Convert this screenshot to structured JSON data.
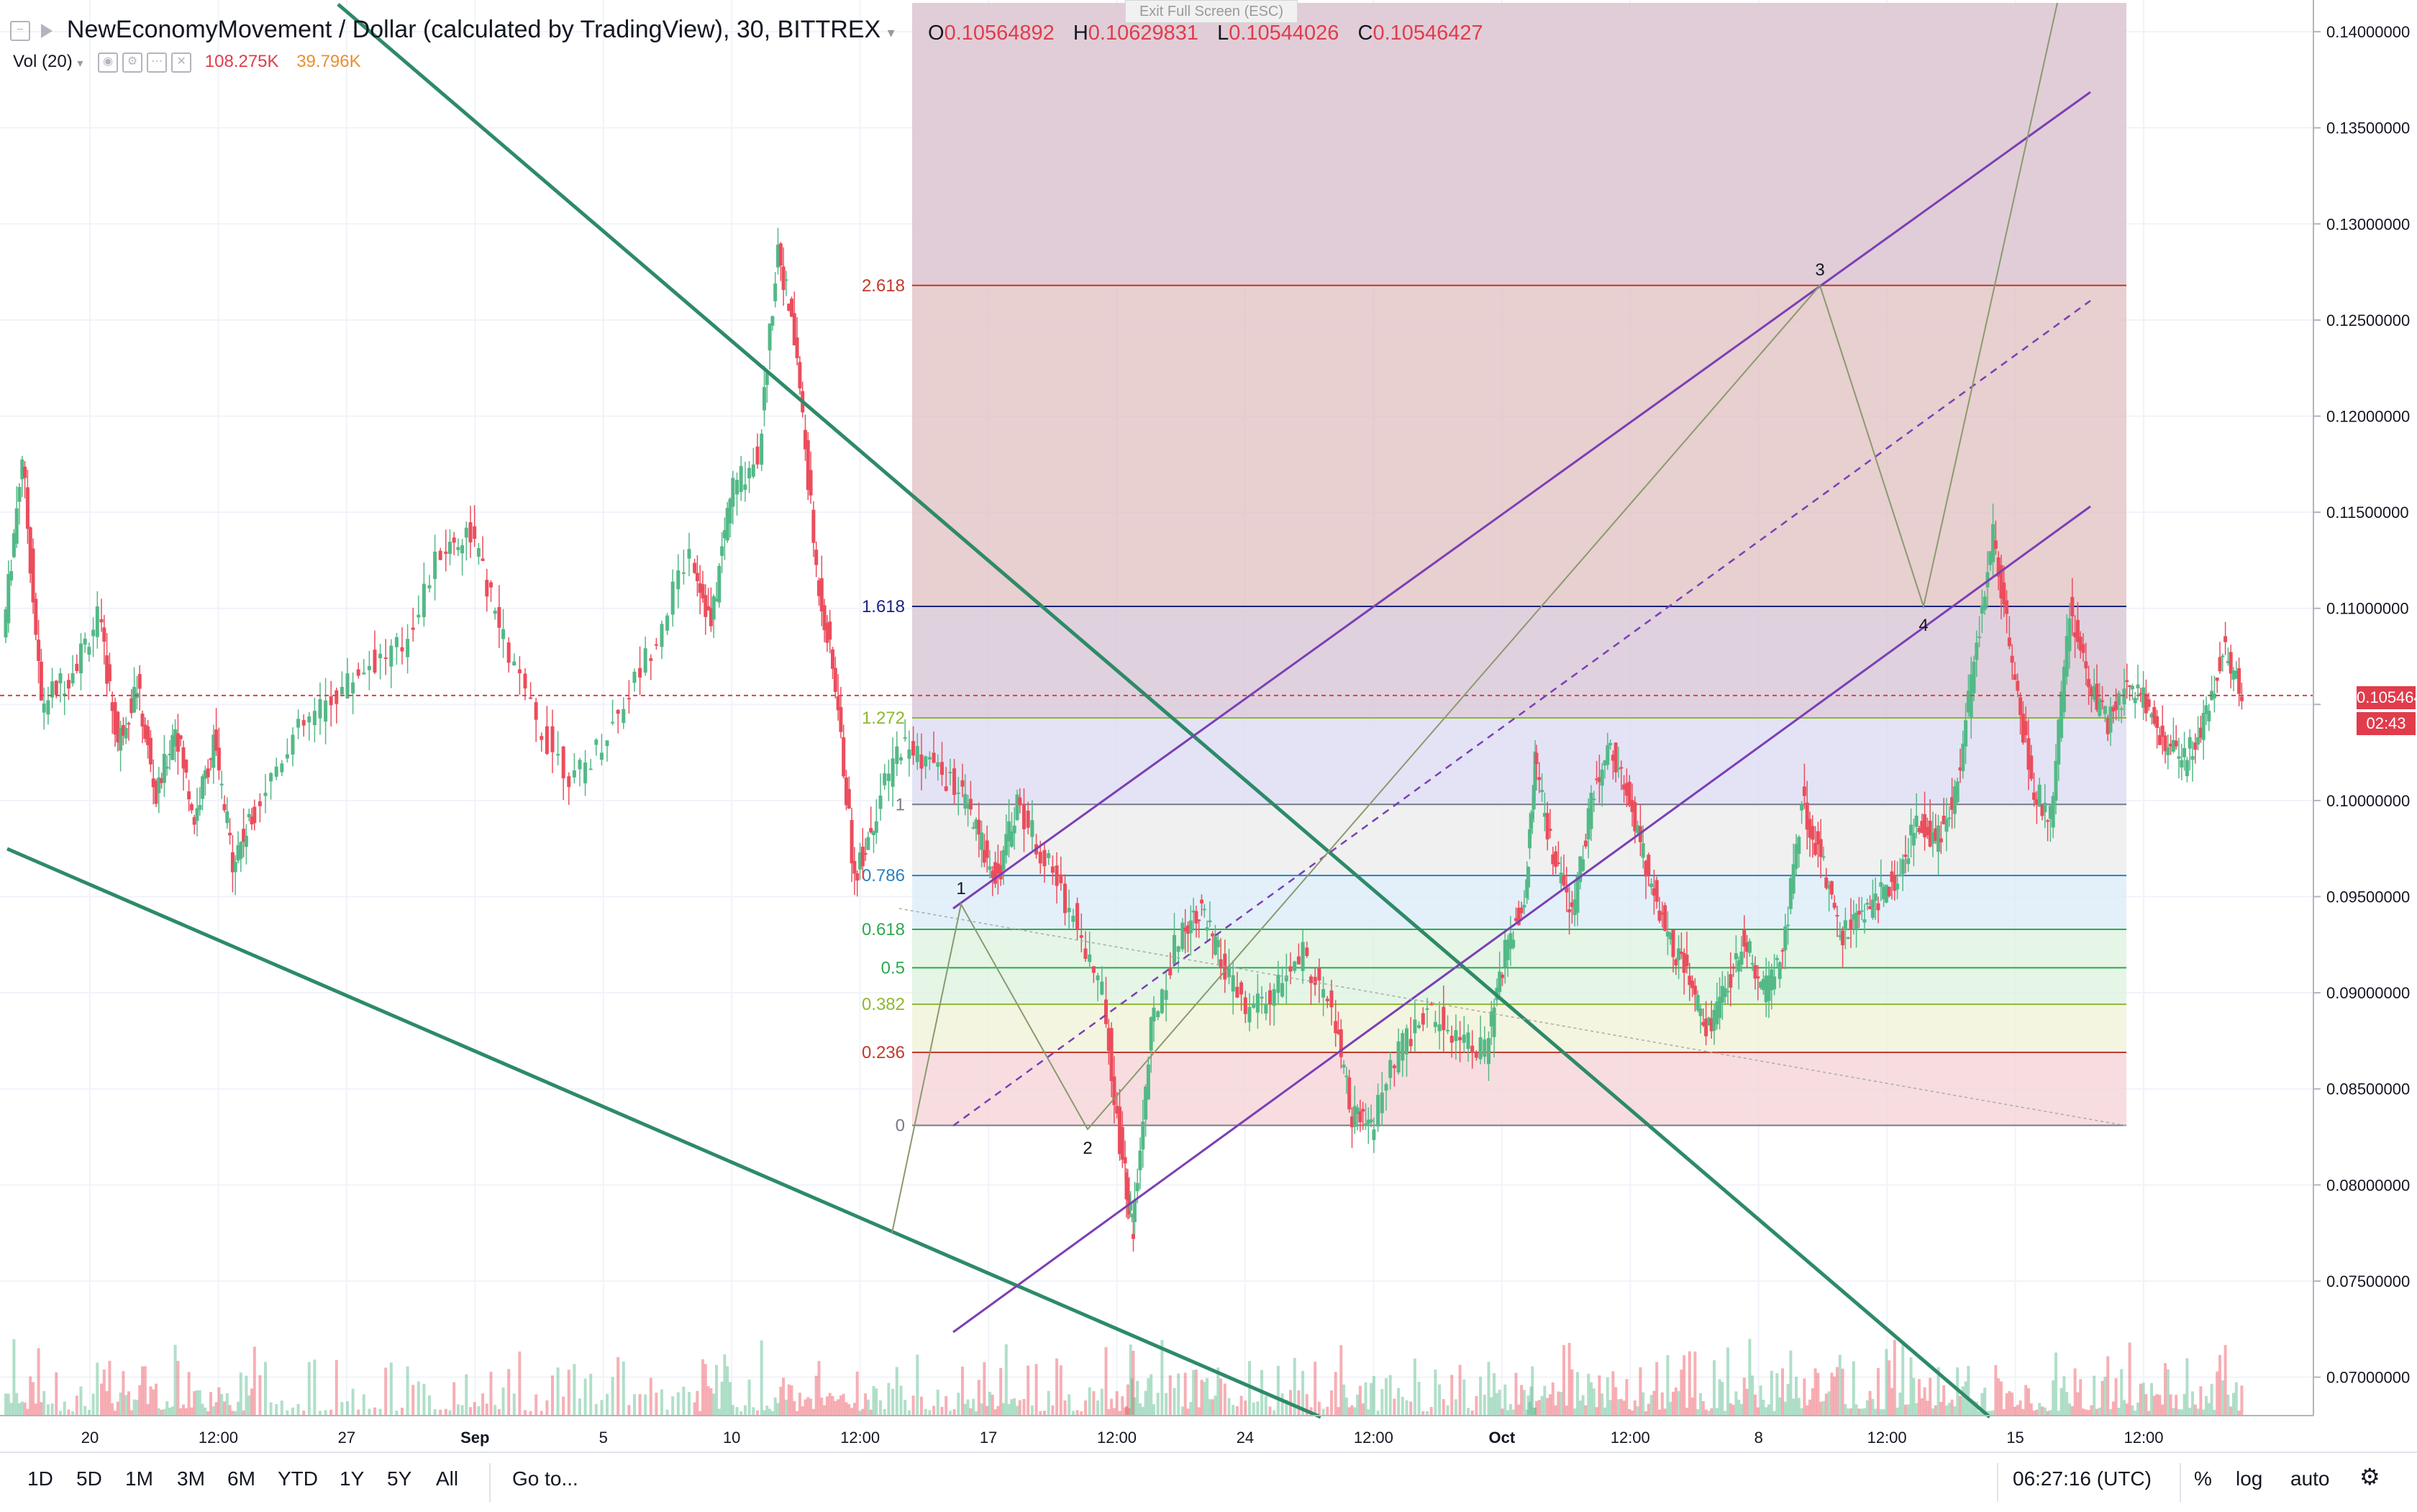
{
  "header": {
    "symbol": "NewEconomyMovement / Dollar (calculated by TradingView), 30, BITTREX",
    "ohlc": [
      {
        "key": "O",
        "value": "0.10564892"
      },
      {
        "key": "H",
        "value": "0.10629831"
      },
      {
        "key": "L",
        "value": "0.10544026"
      },
      {
        "key": "C",
        "value": "0.10546427"
      }
    ],
    "volume_label": "Vol (20)",
    "volume_values": [
      "108.275K",
      "39.796K"
    ],
    "exit_fullscreen": "Exit Full Screen (ESC)"
  },
  "colors": {
    "up": "#53b987",
    "down": "#eb4d5c",
    "trendline": "#2e8a68",
    "channel": "#7b3fb5",
    "current_price": "#e03c4c",
    "wave": "#8a9a6e"
  },
  "chart_data": {
    "type": "candlestick",
    "y_axis": {
      "ticks": [
        0.14,
        0.135,
        0.13,
        0.125,
        0.12,
        0.115,
        0.11,
        0.105,
        0.1,
        0.095,
        0.09,
        0.085,
        0.08,
        0.075,
        0.07
      ],
      "tick_labels": [
        "0.14000000",
        "0.13500000",
        "0.13000000",
        "0.12500000",
        "0.12000000",
        "0.11500000",
        "0.11000000",
        "",
        "0.10000000",
        "0.09500000",
        "0.09000000",
        "0.08500000",
        "0.08000000",
        "0.07500000",
        "0.07000000"
      ],
      "range": [
        0.068,
        0.1415
      ]
    },
    "x_axis": {
      "tick_labels": [
        "20",
        "12:00",
        "27",
        "Sep",
        "5",
        "10",
        "12:00",
        "17",
        "12:00",
        "24",
        "12:00",
        "Oct",
        "12:00",
        "8",
        "12:00",
        "15",
        "12:00"
      ]
    },
    "current_price": {
      "value": 0.10546427,
      "label": "0.10546427",
      "countdown": "02:43"
    },
    "price_path": [
      [
        0,
        0.1085
      ],
      [
        0.01,
        0.118
      ],
      [
        0.02,
        0.105
      ],
      [
        0.035,
        0.1065
      ],
      [
        0.05,
        0.1095
      ],
      [
        0.06,
        0.103
      ],
      [
        0.07,
        0.106
      ],
      [
        0.08,
        0.1
      ],
      [
        0.09,
        0.104
      ],
      [
        0.1,
        0.099
      ],
      [
        0.11,
        0.103
      ],
      [
        0.12,
        0.097
      ],
      [
        0.13,
        0.099
      ],
      [
        0.15,
        0.103
      ],
      [
        0.17,
        0.105
      ],
      [
        0.19,
        0.107
      ],
      [
        0.21,
        0.108
      ],
      [
        0.23,
        0.113
      ],
      [
        0.245,
        0.114
      ],
      [
        0.26,
        0.109
      ],
      [
        0.28,
        0.104
      ],
      [
        0.3,
        0.101
      ],
      [
        0.32,
        0.104
      ],
      [
        0.34,
        0.108
      ],
      [
        0.36,
        0.113
      ],
      [
        0.37,
        0.109
      ],
      [
        0.38,
        0.116
      ],
      [
        0.395,
        0.118
      ],
      [
        0.405,
        0.129
      ],
      [
        0.415,
        0.123
      ],
      [
        0.425,
        0.112
      ],
      [
        0.435,
        0.106
      ],
      [
        0.445,
        0.096
      ],
      [
        0.455,
        0.099
      ],
      [
        0.47,
        0.103
      ],
      [
        0.485,
        0.102
      ],
      [
        0.5,
        0.1005
      ],
      [
        0.51,
        0.098
      ],
      [
        0.52,
        0.096
      ],
      [
        0.53,
        0.1
      ],
      [
        0.545,
        0.097
      ],
      [
        0.56,
        0.094
      ],
      [
        0.575,
        0.09
      ],
      [
        0.585,
        0.081
      ],
      [
        0.59,
        0.0775
      ],
      [
        0.6,
        0.088
      ],
      [
        0.615,
        0.093
      ],
      [
        0.625,
        0.0945
      ],
      [
        0.635,
        0.092
      ],
      [
        0.65,
        0.089
      ],
      [
        0.665,
        0.09
      ],
      [
        0.68,
        0.092
      ],
      [
        0.695,
        0.089
      ],
      [
        0.705,
        0.0835
      ],
      [
        0.715,
        0.083
      ],
      [
        0.73,
        0.087
      ],
      [
        0.745,
        0.089
      ],
      [
        0.76,
        0.088
      ],
      [
        0.775,
        0.087
      ],
      [
        0.785,
        0.092
      ],
      [
        0.795,
        0.095
      ],
      [
        0.8,
        0.102
      ],
      [
        0.81,
        0.097
      ],
      [
        0.82,
        0.094
      ],
      [
        0.83,
        0.1
      ],
      [
        0.84,
        0.103
      ],
      [
        0.85,
        0.1
      ],
      [
        0.86,
        0.096
      ],
      [
        0.87,
        0.093
      ],
      [
        0.88,
        0.091
      ],
      [
        0.89,
        0.088
      ],
      [
        0.9,
        0.09
      ],
      [
        0.91,
        0.093
      ],
      [
        0.92,
        0.09
      ],
      [
        0.93,
        0.092
      ],
      [
        0.94,
        0.1
      ],
      [
        0.95,
        0.097
      ],
      [
        0.96,
        0.093
      ],
      [
        0.97,
        0.094
      ],
      [
        0.98,
        0.095
      ],
      [
        0.99,
        0.096
      ],
      [
        1.0,
        0.099
      ],
      [
        1.01,
        0.098
      ],
      [
        1.02,
        0.1
      ],
      [
        1.03,
        0.107
      ],
      [
        1.04,
        0.114
      ],
      [
        1.05,
        0.107
      ],
      [
        1.06,
        0.101
      ],
      [
        1.07,
        0.099
      ],
      [
        1.08,
        0.11
      ],
      [
        1.09,
        0.106
      ],
      [
        1.1,
        0.104
      ],
      [
        1.11,
        0.106
      ],
      [
        1.12,
        0.105
      ],
      [
        1.13,
        0.103
      ],
      [
        1.14,
        0.102
      ],
      [
        1.15,
        0.104
      ],
      [
        1.16,
        0.108
      ],
      [
        1.17,
        0.1055
      ]
    ],
    "fibonacci": {
      "levels": [
        {
          "ratio": 0,
          "label": "0",
          "price": 0.0831,
          "color": "#787b86"
        },
        {
          "ratio": 0.236,
          "label": "0.236",
          "price": 0.0869,
          "color": "#c0392b"
        },
        {
          "ratio": 0.382,
          "label": "0.382",
          "price": 0.0894,
          "color": "#8cb830"
        },
        {
          "ratio": 0.5,
          "label": "0.5",
          "price": 0.0913,
          "color": "#2ea94f"
        },
        {
          "ratio": 0.618,
          "label": "0.618",
          "price": 0.0933,
          "color": "#2ea94f"
        },
        {
          "ratio": 0.786,
          "label": "0.786",
          "price": 0.0961,
          "color": "#2a7fc1"
        },
        {
          "ratio": 1,
          "label": "1",
          "price": 0.0998,
          "color": "#787b86"
        },
        {
          "ratio": 1.272,
          "label": "1.272",
          "price": 0.1043,
          "color": "#8cb830"
        },
        {
          "ratio": 1.618,
          "label": "1.618",
          "price": 0.1101,
          "color": "#1a237e"
        },
        {
          "ratio": 2.618,
          "label": "2.618",
          "price": 0.1268,
          "color": "#c0392b"
        }
      ]
    },
    "wave_points": [
      {
        "label": "1",
        "price": 0.0946
      },
      {
        "label": "2",
        "price": 0.0829
      },
      {
        "label": "3",
        "price": 0.1268
      },
      {
        "label": "4",
        "price": 0.1101
      }
    ]
  },
  "toolbar": {
    "ranges": [
      "1D",
      "5D",
      "1M",
      "3M",
      "6M",
      "YTD",
      "1Y",
      "5Y",
      "All"
    ],
    "goto": "Go to...",
    "time": "06:27:16 (UTC)",
    "percent": "%",
    "log": "log",
    "auto": "auto"
  }
}
